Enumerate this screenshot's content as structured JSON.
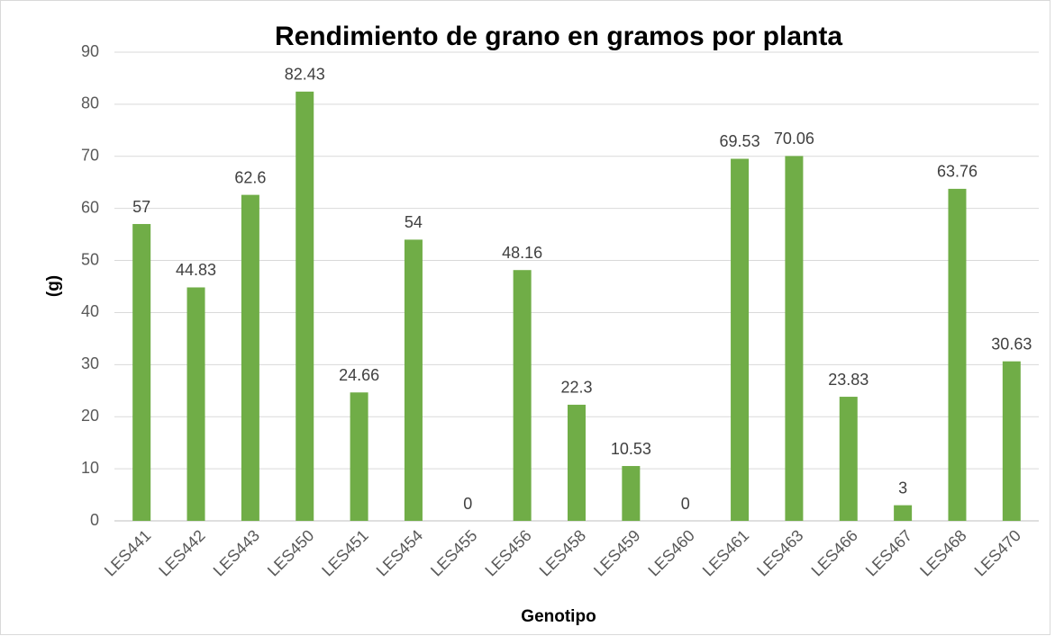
{
  "chart_data": {
    "type": "bar",
    "title": "Rendimiento de grano en gramos por planta",
    "x_label": "Genotipo",
    "y_label": "(g)",
    "categories": [
      "LES441",
      "LES442",
      "LES443",
      "LES450",
      "LES451",
      "LES454",
      "LES455",
      "LES456",
      "LES458",
      "LES459",
      "LES460",
      "LES461",
      "LES463",
      "LES466",
      "LES467",
      "LES468",
      "LES470"
    ],
    "values": [
      57,
      44.83,
      62.6,
      82.43,
      24.66,
      54,
      0,
      48.16,
      22.3,
      10.53,
      0,
      69.53,
      70.06,
      23.83,
      3,
      63.76,
      30.63
    ],
    "color": "#70ad47",
    "ylim": [
      0,
      90
    ],
    "yticks": [
      0,
      10,
      20,
      30,
      40,
      50,
      60,
      70,
      80,
      90
    ],
    "grid": true
  }
}
